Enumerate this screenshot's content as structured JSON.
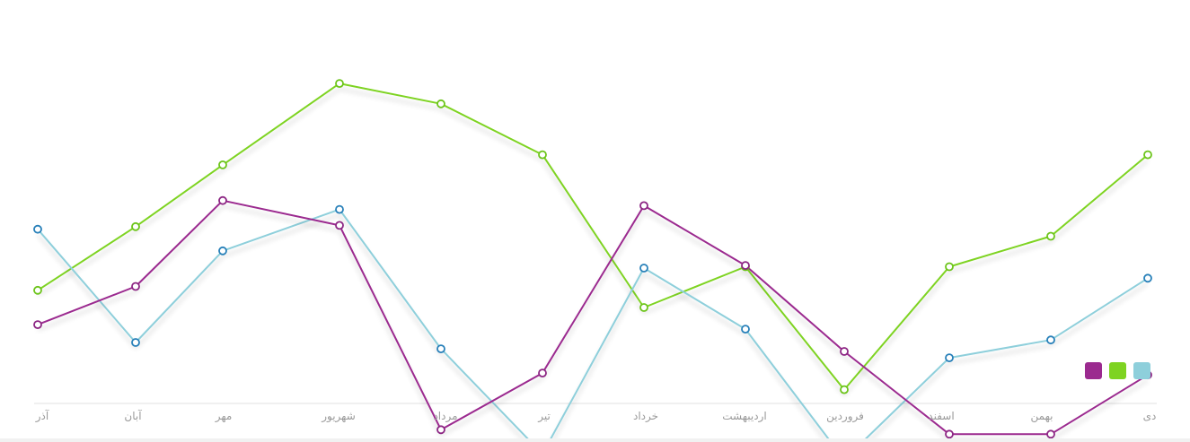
{
  "chart_data": {
    "type": "line",
    "categories": [
      "دی",
      "بهمن",
      "اسفند",
      "فروردین",
      "اردیبهشت",
      "خرداد",
      "تیر",
      "مرداد",
      "شهریور",
      "مهر",
      "آبان",
      "آذر"
    ],
    "series": [
      {
        "color": "#7ed321",
        "marker_color": "#6cc41a",
        "values": [
          80.2,
          67.4,
          62.6,
          43.3,
          62.6,
          56.2,
          80.2,
          88.2,
          91.4,
          78.6,
          68.9,
          58.9
        ]
      },
      {
        "color": "#8ecfdb",
        "marker_color": "#2880b9",
        "values": [
          60.8,
          51.1,
          48.3,
          32.3,
          52.8,
          62.4,
          33.2,
          49.7,
          71.6,
          65.1,
          50.7,
          68.5
        ]
      },
      {
        "color": "#9b2a8f",
        "marker_color": "#8c2583",
        "values": [
          45.6,
          36.3,
          36.3,
          49.3,
          62.8,
          72.2,
          45.9,
          37.0,
          69.1,
          73.0,
          59.5,
          53.5
        ]
      }
    ],
    "ylim": [
      40,
      100
    ],
    "grid": false,
    "legend": "bottom-right",
    "legend_colors": [
      "#8ecfdb",
      "#7ed321",
      "#9b2a8f"
    ],
    "axis_color": "#e0e0e0"
  }
}
